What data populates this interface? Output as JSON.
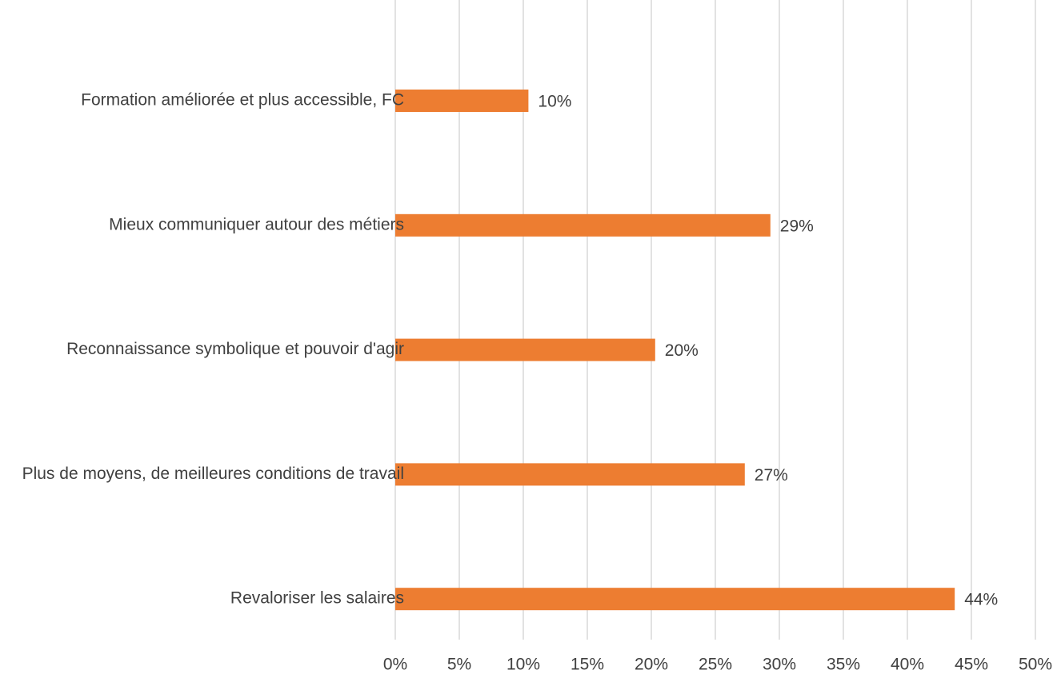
{
  "chart_data": {
    "type": "hbar",
    "categories": [
      "Formation améliorée et plus accessible, FC",
      "Mieux communiquer autour des métiers",
      "Reconnaissance symbolique et pouvoir d'agir",
      "Plus de moyens, de meilleures conditions de travail",
      "Revaloriser les salaires"
    ],
    "values": [
      10.4,
      29.3,
      20.3,
      27.3,
      43.7
    ],
    "value_labels": [
      "10%",
      "29%",
      "20%",
      "27%",
      "44%"
    ],
    "color": "#ed7d31",
    "xlim": [
      0,
      50
    ],
    "xticks": [
      {
        "value": 0,
        "label": "0%"
      },
      {
        "value": 5,
        "label": "5%"
      },
      {
        "value": 10,
        "label": "10%"
      },
      {
        "value": 15,
        "label": "15%"
      },
      {
        "value": 20,
        "label": "20%"
      },
      {
        "value": 25,
        "label": "25%"
      },
      {
        "value": 30,
        "label": "30%"
      },
      {
        "value": 35,
        "label": "35%"
      },
      {
        "value": 40,
        "label": "40%"
      },
      {
        "value": 45,
        "label": "45%"
      },
      {
        "value": 50,
        "label": "50%"
      }
    ],
    "grid": true
  }
}
